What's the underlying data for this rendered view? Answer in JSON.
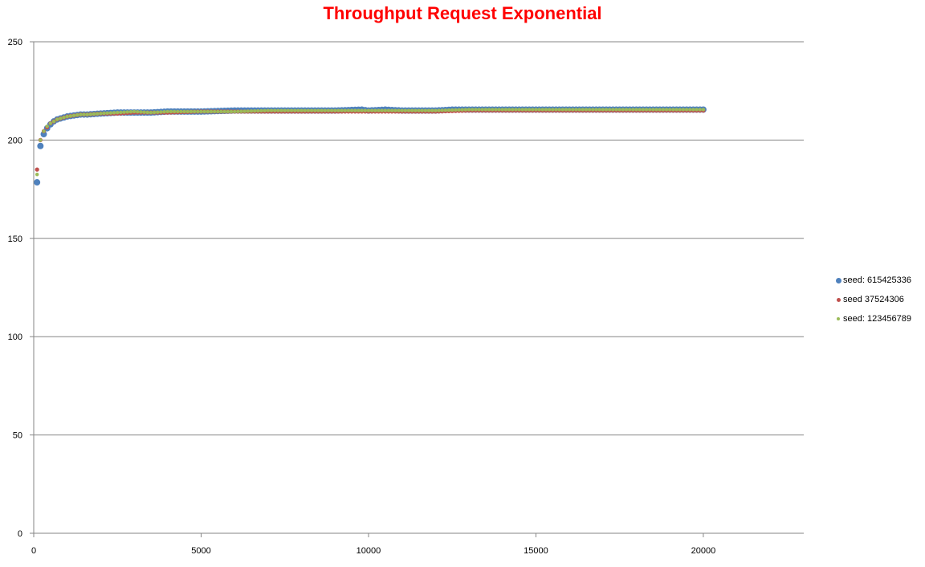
{
  "chart_data": {
    "type": "scatter",
    "title": "Throughput Request Exponential",
    "xlabel": "",
    "ylabel": "",
    "xlim": [
      0,
      23000
    ],
    "ylim": [
      0,
      250
    ],
    "x_ticks": [
      "0",
      "5000",
      "10000",
      "15000",
      "20000"
    ],
    "y_ticks": [
      "0",
      "50",
      "100",
      "150",
      "200",
      "250"
    ],
    "grid": "horizontal major gridlines",
    "legend_position": "right",
    "series": [
      {
        "name": "seed: 615425336",
        "color": "#4f81bd",
        "points": [
          [
            100,
            178.5
          ],
          [
            200,
            197
          ],
          [
            300,
            203
          ],
          [
            400,
            206
          ],
          [
            500,
            208
          ],
          [
            600,
            209.5
          ],
          [
            700,
            210.5
          ],
          [
            800,
            211
          ],
          [
            900,
            211.5
          ],
          [
            1000,
            212
          ],
          [
            1200,
            212.5
          ],
          [
            1400,
            213
          ],
          [
            1600,
            213
          ],
          [
            2000,
            213.5
          ],
          [
            2500,
            214
          ],
          [
            3000,
            214
          ],
          [
            3500,
            214
          ],
          [
            4000,
            214.5
          ],
          [
            5000,
            214.5
          ],
          [
            6000,
            215
          ],
          [
            7000,
            215
          ],
          [
            8000,
            215
          ],
          [
            9000,
            215
          ],
          [
            9800,
            215.5
          ],
          [
            10000,
            215
          ],
          [
            10500,
            215.5
          ],
          [
            11000,
            215
          ],
          [
            12000,
            215
          ],
          [
            12500,
            215.5
          ],
          [
            13000,
            215.5
          ],
          [
            14000,
            215.5
          ],
          [
            15000,
            215.5
          ],
          [
            16000,
            215.5
          ],
          [
            17000,
            215.5
          ],
          [
            18000,
            215.5
          ],
          [
            19000,
            215.5
          ],
          [
            20000,
            215.5
          ]
        ]
      },
      {
        "name": "seed 37524306",
        "color": "#c0504d",
        "points": [
          [
            100,
            185
          ],
          [
            200,
            200
          ],
          [
            300,
            204.5
          ],
          [
            400,
            206.5
          ],
          [
            500,
            208.5
          ],
          [
            600,
            209.5
          ],
          [
            700,
            210.5
          ],
          [
            800,
            211
          ],
          [
            900,
            211.5
          ],
          [
            1000,
            212
          ],
          [
            1200,
            212.5
          ],
          [
            1400,
            213
          ],
          [
            1600,
            213
          ],
          [
            2000,
            213.5
          ],
          [
            2500,
            213.5
          ],
          [
            3000,
            214
          ],
          [
            3500,
            214
          ],
          [
            4000,
            214
          ],
          [
            5000,
            214.5
          ],
          [
            6000,
            214.5
          ],
          [
            7000,
            214.5
          ],
          [
            8000,
            214.5
          ],
          [
            9000,
            214.5
          ],
          [
            10000,
            214.5
          ],
          [
            11000,
            214.5
          ],
          [
            12000,
            214.5
          ],
          [
            13000,
            215
          ],
          [
            14000,
            215
          ],
          [
            15000,
            215
          ],
          [
            16000,
            215
          ],
          [
            17000,
            215
          ],
          [
            18000,
            215
          ],
          [
            19000,
            215
          ],
          [
            20000,
            215
          ]
        ]
      },
      {
        "name": "seed: 123456789",
        "color": "#9bbb59",
        "points": [
          [
            100,
            182.5
          ],
          [
            200,
            200
          ],
          [
            300,
            204.5
          ],
          [
            400,
            207
          ],
          [
            500,
            208.5
          ],
          [
            600,
            209.5
          ],
          [
            700,
            210.5
          ],
          [
            800,
            211
          ],
          [
            900,
            211.5
          ],
          [
            1000,
            212
          ],
          [
            1200,
            212.5
          ],
          [
            1400,
            213
          ],
          [
            1600,
            213
          ],
          [
            2000,
            213.5
          ],
          [
            2500,
            214
          ],
          [
            3000,
            214.5
          ],
          [
            3500,
            214
          ],
          [
            4000,
            214.5
          ],
          [
            5000,
            214.5
          ],
          [
            6000,
            214.5
          ],
          [
            7000,
            215
          ],
          [
            8000,
            215
          ],
          [
            9000,
            215
          ],
          [
            10000,
            215
          ],
          [
            11000,
            215
          ],
          [
            12000,
            215
          ],
          [
            13000,
            215.5
          ],
          [
            14000,
            215.5
          ],
          [
            15000,
            215.5
          ],
          [
            16000,
            215.5
          ],
          [
            17000,
            215.5
          ],
          [
            18000,
            215.5
          ],
          [
            19000,
            215.5
          ],
          [
            20000,
            215.5
          ]
        ]
      }
    ]
  }
}
